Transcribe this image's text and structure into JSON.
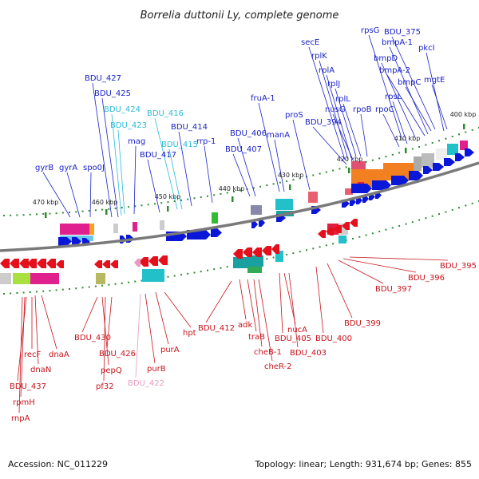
{
  "title": "Borrelia duttonii Ly, complete genome",
  "footer": {
    "accession": "Accession: NC_011229",
    "summary": "Topology: linear; Length: 931,674 bp; Genes: 855"
  },
  "colors": {
    "forward": "#0a16d8",
    "reverse": "#e4101c",
    "backbone": "#7a7a7a",
    "tick_mark": "#2e8b2e",
    "label_blue": "#1a22c8",
    "label_cyan": "#2bbcd8",
    "label_red": "#c8141c",
    "label_pink": "#e89ac0"
  },
  "ticks": [
    {
      "label": "470 kbp"
    },
    {
      "label": "460 kbp"
    },
    {
      "label": "450 kbp"
    },
    {
      "label": "440 kbp"
    },
    {
      "label": "430 kbp"
    },
    {
      "label": "420 kbp"
    },
    {
      "label": "410 kbp"
    },
    {
      "label": "400 kbp"
    }
  ],
  "forward_genes": [
    {
      "name": "gyrB"
    },
    {
      "name": "gyrA"
    },
    {
      "name": "spo0J"
    },
    {
      "name": "BDU_427"
    },
    {
      "name": "BDU_425"
    },
    {
      "name": "BDU_424"
    },
    {
      "name": "BDU_423"
    },
    {
      "name": "mag"
    },
    {
      "name": "BDU_417"
    },
    {
      "name": "BDU_416"
    },
    {
      "name": "BDU_415"
    },
    {
      "name": "BDU_414"
    },
    {
      "name": "rrp-1"
    },
    {
      "name": "BDU_407"
    },
    {
      "name": "BDU_406"
    },
    {
      "name": "fruA-1"
    },
    {
      "name": "manA"
    },
    {
      "name": "proS"
    },
    {
      "name": "secE"
    },
    {
      "name": "rplK"
    },
    {
      "name": "rplA"
    },
    {
      "name": "rplJ"
    },
    {
      "name": "rplL"
    },
    {
      "name": "BDU_394"
    },
    {
      "name": "nusG"
    },
    {
      "name": "rpoB"
    },
    {
      "name": "rpsG"
    },
    {
      "name": "rpoC"
    },
    {
      "name": "rpsL"
    },
    {
      "name": "bmpD"
    },
    {
      "name": "bmpA-1"
    },
    {
      "name": "bmpA-2"
    },
    {
      "name": "bmpC"
    },
    {
      "name": "BDU_375"
    },
    {
      "name": "mgtE"
    },
    {
      "name": "pkcI"
    }
  ],
  "reverse_genes": [
    {
      "name": "BDU_437"
    },
    {
      "name": "recF"
    },
    {
      "name": "dnaN"
    },
    {
      "name": "dnaA"
    },
    {
      "name": "rpmH"
    },
    {
      "name": "rnpA"
    },
    {
      "name": "BDU_430"
    },
    {
      "name": "pepQ"
    },
    {
      "name": "pf32"
    },
    {
      "name": "BDU_426"
    },
    {
      "name": "BDU_422"
    },
    {
      "name": "purB"
    },
    {
      "name": "purA"
    },
    {
      "name": "hpt"
    },
    {
      "name": "BDU_412"
    },
    {
      "name": "adk"
    },
    {
      "name": "traB"
    },
    {
      "name": "cheB-1"
    },
    {
      "name": "cheR-2"
    },
    {
      "name": "BDU_405"
    },
    {
      "name": "nucA"
    },
    {
      "name": "BDU_403"
    },
    {
      "name": "BDU_400"
    },
    {
      "name": "BDU_399"
    },
    {
      "name": "BDU_397"
    },
    {
      "name": "BDU_396"
    },
    {
      "name": "BDU_395"
    }
  ]
}
